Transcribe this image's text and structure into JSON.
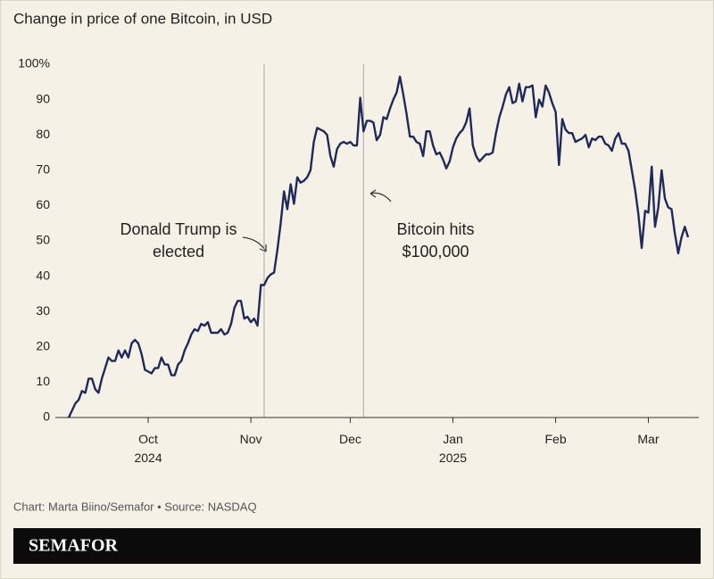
{
  "chart_data": {
    "type": "line",
    "title": "Change in price of one Bitcoin, in USD",
    "source": "Chart: Marta Biino/Semafor • Source: NASDAQ",
    "brand": "SEMAFOR",
    "annotations": [
      {
        "lines": [
          "Donald Trump is",
          "elected"
        ]
      },
      {
        "lines": [
          "Bitcoin hits",
          "$100,000"
        ]
      }
    ],
    "color": "#1f2a5c",
    "grid": false,
    "ylim": [
      0,
      100
    ],
    "yticks": [
      0,
      10,
      20,
      30,
      40,
      50,
      60,
      70,
      80,
      90,
      {
        "value": 100,
        "label": "100%"
      }
    ],
    "categories": [
      null,
      null,
      null,
      null,
      null,
      null,
      null,
      null,
      null,
      null,
      null,
      null,
      null,
      null,
      null,
      null,
      null,
      null,
      null,
      null,
      null,
      null,
      null,
      null,
      "Oct 2024",
      null,
      null,
      null,
      null,
      null,
      null,
      null,
      null,
      null,
      null,
      null,
      null,
      null,
      null,
      null,
      null,
      null,
      null,
      null,
      null,
      null,
      null,
      null,
      null,
      null,
      null,
      null,
      null,
      null,
      null,
      "Nov",
      null,
      null,
      null,
      null,
      null,
      null,
      null,
      null,
      null,
      null,
      null,
      null,
      null,
      null,
      null,
      null,
      null,
      null,
      null,
      null,
      null,
      null,
      null,
      null,
      null,
      null,
      null,
      null,
      null,
      "Dec",
      null,
      null,
      null,
      null,
      null,
      null,
      null,
      null,
      null,
      null,
      null,
      null,
      null,
      null,
      null,
      null,
      null,
      null,
      null,
      null,
      null,
      null,
      null,
      null,
      null,
      null,
      null,
      null,
      null,
      null,
      "Jan 2025",
      null,
      null,
      null,
      null,
      null,
      null,
      null,
      null,
      null,
      null,
      null,
      null,
      null,
      null,
      null,
      null,
      null,
      null,
      null,
      null,
      null,
      null,
      null,
      null,
      null,
      null,
      null,
      null,
      null,
      null,
      "Feb",
      null,
      null,
      null,
      null,
      null,
      null,
      null,
      null,
      null,
      null,
      null,
      null,
      null,
      null,
      null,
      null,
      null,
      null,
      null,
      null,
      null,
      null,
      null,
      null,
      null,
      null,
      null,
      "Mar",
      null,
      null,
      null,
      null,
      null,
      null,
      null,
      null,
      null,
      null,
      null,
      null
    ],
    "values": [
      0,
      2,
      4,
      5,
      7.5,
      7,
      11,
      11,
      8,
      7,
      11,
      14,
      17,
      16,
      16,
      19,
      17,
      19,
      17,
      21,
      22,
      21,
      18,
      13.5,
      13,
      12.5,
      14,
      14,
      17,
      15,
      15,
      12,
      12,
      15,
      16,
      19,
      21,
      23.5,
      25,
      24.5,
      26.5,
      26,
      27,
      24,
      24,
      24,
      25,
      23.5,
      24,
      26.5,
      31,
      33,
      33,
      28,
      28.5,
      27,
      28,
      26,
      37.5,
      37.5,
      39.5,
      40.5,
      41,
      47.5,
      55,
      64,
      59,
      66,
      60.5,
      68,
      66.5,
      67,
      68,
      70,
      78,
      82,
      81.5,
      81,
      80,
      74,
      71,
      76,
      77.5,
      78,
      77.5,
      78,
      77,
      77,
      90.5,
      81,
      84,
      84,
      83.5,
      78.5,
      80,
      85,
      84.5,
      87.5,
      90,
      92,
      96.5,
      91.5,
      86,
      79.5,
      79.5,
      78,
      77.5,
      74,
      81,
      81,
      77,
      74.5,
      75,
      73,
      70.5,
      72.5,
      76.5,
      79,
      80.5,
      81.5,
      83.5,
      87.5,
      77,
      74,
      72.5,
      73.5,
      74.5,
      74.5,
      75,
      80.5,
      85,
      88,
      91.5,
      93.5,
      89,
      89.5,
      94.5,
      89.5,
      93.5,
      93.5,
      94,
      85,
      90,
      88,
      94,
      92,
      89,
      86.5,
      71.5,
      84.5,
      81.5,
      80.5,
      80.5,
      78,
      78.5,
      79,
      80,
      76.5,
      79,
      78.5,
      79.5,
      79.5,
      77.5,
      77,
      75.5,
      79,
      80.5,
      77.5,
      77.5,
      75.5,
      70,
      64.5,
      57.5,
      48,
      58.5,
      58,
      71,
      54,
      59.5,
      70,
      62,
      59.5,
      59,
      52,
      46.5,
      51,
      54,
      51
    ]
  }
}
